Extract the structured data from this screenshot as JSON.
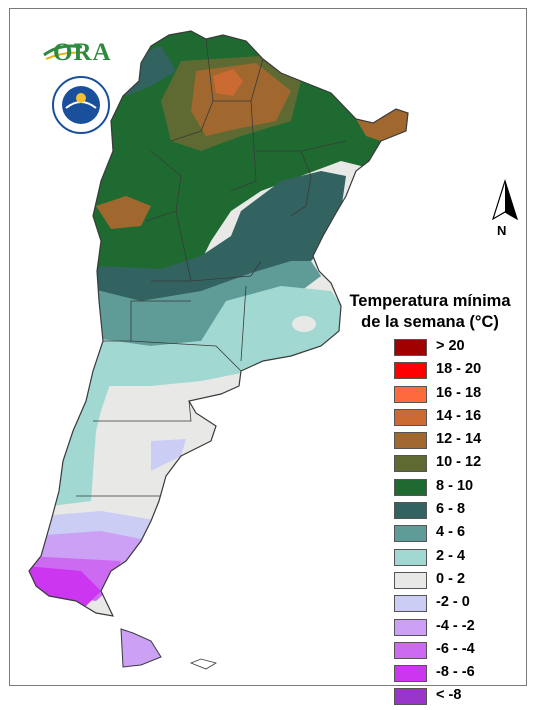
{
  "legend": {
    "title_line1": "Temperatura mínima",
    "title_line2": "de la semana (°C)",
    "items": [
      {
        "label": "> 20",
        "color": "#a00000"
      },
      {
        "label": "18 - 20",
        "color": "#ff0000"
      },
      {
        "label": "16 - 18",
        "color": "#ff6a3d"
      },
      {
        "label": "14 - 16",
        "color": "#cc6a33"
      },
      {
        "label": "12 - 14",
        "color": "#a0682e"
      },
      {
        "label": "10 - 12",
        "color": "#5e6a31"
      },
      {
        "label": "8 - 10",
        "color": "#1e6a30"
      },
      {
        "label": "6 - 8",
        "color": "#336360"
      },
      {
        "label": "4 - 6",
        "color": "#5f9c98"
      },
      {
        "label": "2 - 4",
        "color": "#a2d8d2"
      },
      {
        "label": "0 - 2",
        "color": "#e8e8e6"
      },
      {
        "label": "-2 - 0",
        "color": "#cccdf5"
      },
      {
        "label": "-4 - -2",
        "color": "#cca0f5"
      },
      {
        "label": "-6 - -4",
        "color": "#cc6af2"
      },
      {
        "label": "-8 - -6",
        "color": "#cc36f0"
      },
      {
        "label": "< -8",
        "color": "#9a35cc"
      }
    ]
  },
  "logos": {
    "ora_text": "ORA"
  },
  "north": {
    "label": "N"
  },
  "colors": {
    "border": "#3a3a3a",
    "frame": "#7a7a7a"
  }
}
